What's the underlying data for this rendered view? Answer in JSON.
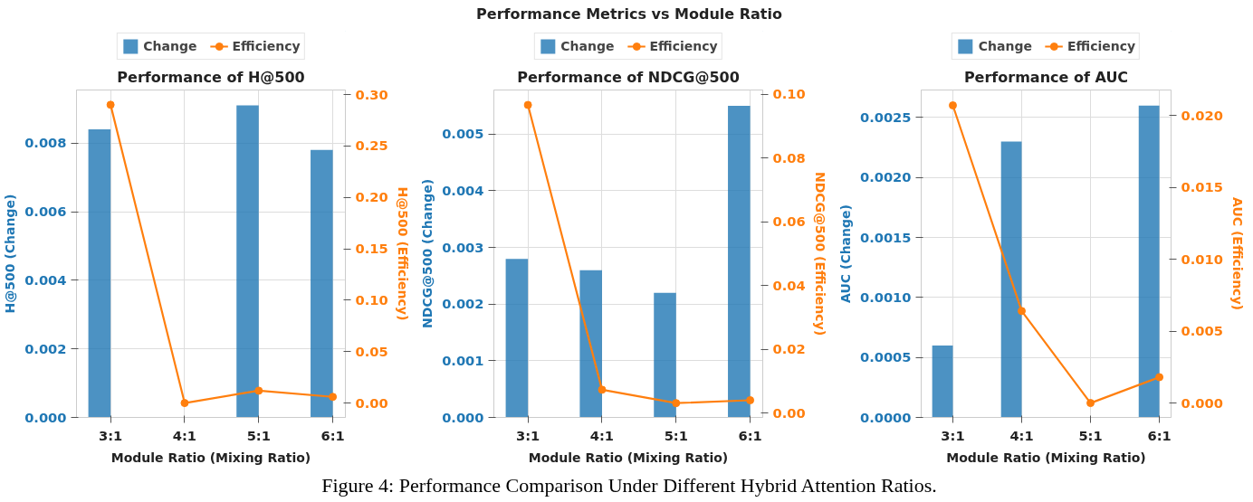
{
  "chart_data": [
    {
      "type": "bar",
      "title": "Performance of H@500",
      "xlabel": "Module Ratio (Mixing Ratio)",
      "ylabel": "H@500 (Change)",
      "y2label": "H@500 (Efficiency)",
      "annotations": [
        "Performance Metrics vs Module Ratio",
        "Figure 4: Performance Comparison Under Different Hybrid Attention Ratios."
      ],
      "categories": [
        "3:1",
        "4:1",
        "5:1",
        "6:1"
      ],
      "series": [
        {
          "name": "Change",
          "type": "bar",
          "color": "#1f77b4",
          "values": [
            0.0084,
            0,
            0.0091,
            0.0078
          ]
        },
        {
          "name": "Efficiency",
          "type": "line",
          "axis": "y2",
          "color": "#ff7f0e",
          "values": [
            0.29,
            0.0,
            0.012,
            0.006
          ]
        }
      ],
      "ylim": [
        0,
        0.00955
      ],
      "yticks": [
        {
          "value": 0,
          "label": "0.000"
        },
        {
          "value": 0.002,
          "label": "0.002"
        },
        {
          "value": 0.004,
          "label": "0.004"
        },
        {
          "value": 0.006,
          "label": "0.006"
        },
        {
          "value": 0.008,
          "label": "0.008"
        }
      ],
      "y2lim": [
        -0.014,
        0.3044
      ],
      "y2ticks": [
        {
          "value": 0,
          "label": "0.00"
        },
        {
          "value": 0.05,
          "label": "0.05"
        },
        {
          "value": 0.1,
          "label": "0.10"
        },
        {
          "value": 0.15,
          "label": "0.15"
        },
        {
          "value": 0.2,
          "label": "0.20"
        },
        {
          "value": 0.25,
          "label": "0.25"
        },
        {
          "value": 0.3,
          "label": "0.30"
        }
      ],
      "legend": "top",
      "grid": true,
      "marker": "circle"
    },
    {
      "type": "bar",
      "title": "Performance of NDCG@500",
      "xlabel": "Module Ratio (Mixing Ratio)",
      "ylabel": "NDCG@500 (Change)",
      "y2label": "NDCG@500 (Efficiency)",
      "categories": [
        "3:1",
        "4:1",
        "5:1",
        "6:1"
      ],
      "series": [
        {
          "name": "Change",
          "type": "bar",
          "color": "#1f77b4",
          "values": [
            0.0028,
            0.0026,
            0.0022,
            0.0055
          ]
        },
        {
          "name": "Efficiency",
          "type": "line",
          "axis": "y2",
          "color": "#ff7f0e",
          "values": [
            0.0967,
            0.0073,
            0.0031,
            0.004
          ]
        }
      ],
      "ylim": [
        0,
        0.00578
      ],
      "yticks": [
        {
          "value": 0,
          "label": "0.000"
        },
        {
          "value": 0.001,
          "label": "0.001"
        },
        {
          "value": 0.002,
          "label": "0.002"
        },
        {
          "value": 0.003,
          "label": "0.003"
        },
        {
          "value": 0.004,
          "label": "0.004"
        },
        {
          "value": 0.005,
          "label": "0.005"
        }
      ],
      "y2lim": [
        -0.0014,
        0.1014
      ],
      "y2ticks": [
        {
          "value": 0,
          "label": "0.00"
        },
        {
          "value": 0.02,
          "label": "0.02"
        },
        {
          "value": 0.04,
          "label": "0.04"
        },
        {
          "value": 0.06,
          "label": "0.06"
        },
        {
          "value": 0.08,
          "label": "0.08"
        },
        {
          "value": 0.1,
          "label": "0.10"
        }
      ],
      "legend": "top",
      "grid": true,
      "marker": "circle"
    },
    {
      "type": "bar",
      "title": "Performance of AUC",
      "xlabel": "Module Ratio (Mixing Ratio)",
      "ylabel": "AUC (Change)",
      "y2label": "AUC (Efficiency)",
      "categories": [
        "3:1",
        "4:1",
        "5:1",
        "6:1"
      ],
      "series": [
        {
          "name": "Change",
          "type": "bar",
          "color": "#1f77b4",
          "values": [
            0.0006,
            0.0023,
            0,
            0.0026
          ]
        },
        {
          "name": "Efficiency",
          "type": "line",
          "axis": "y2",
          "color": "#ff7f0e",
          "values": [
            0.0207,
            0.0064,
            0.0,
            0.0018
          ]
        }
      ],
      "ylim": [
        0,
        0.00273
      ],
      "yticks": [
        {
          "value": 0,
          "label": "0.0000"
        },
        {
          "value": 0.0005,
          "label": "0.0005"
        },
        {
          "value": 0.001,
          "label": "0.0010"
        },
        {
          "value": 0.0015,
          "label": "0.0015"
        },
        {
          "value": 0.002,
          "label": "0.0020"
        },
        {
          "value": 0.0025,
          "label": "0.0025"
        }
      ],
      "y2lim": [
        -0.001,
        0.02177
      ],
      "y2ticks": [
        {
          "value": 0,
          "label": "0.000"
        },
        {
          "value": 0.005,
          "label": "0.005"
        },
        {
          "value": 0.01,
          "label": "0.010"
        },
        {
          "value": 0.015,
          "label": "0.015"
        },
        {
          "value": 0.02,
          "label": "0.020"
        }
      ],
      "legend": "top",
      "grid": true,
      "marker": "circle"
    }
  ]
}
